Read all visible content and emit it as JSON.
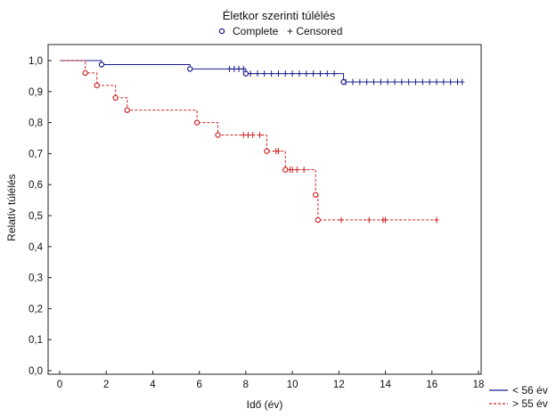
{
  "chart_data": {
    "type": "line",
    "subtype": "kaplan-meier-step",
    "title": "Életkor szerinti túlélés",
    "marker_legend": {
      "complete": "Complete",
      "censored": "+ Censored"
    },
    "xlabel": "Idő (év)",
    "ylabel": "Relatív túlélés",
    "xlim": [
      0,
      18
    ],
    "ylim": [
      0,
      1.0
    ],
    "x_ticks": [
      "0",
      "2",
      "4",
      "6",
      "8",
      "10",
      "12",
      "14",
      "16",
      "18"
    ],
    "y_ticks": [
      "0,0",
      "0,1",
      "0,2",
      "0,3",
      "0,4",
      "0,5",
      "0,6",
      "0,7",
      "0,8",
      "0,9",
      "1,0"
    ],
    "grid": false,
    "legend_position": "bottom-right",
    "series": [
      {
        "name": "< 56 év",
        "color": "#1a1a8c",
        "line_style": "solid",
        "start_x": 0.0,
        "start_y": 1.0,
        "end_x": 17.3,
        "events": [
          {
            "x": 1.8,
            "y": 0.987
          },
          {
            "x": 5.6,
            "y": 0.973
          },
          {
            "x": 8.0,
            "y": 0.958
          },
          {
            "x": 12.2,
            "y": 0.931
          }
        ],
        "censored": [
          7.3,
          7.5,
          7.7,
          7.9,
          8.2,
          8.5,
          8.8,
          9.1,
          9.4,
          9.7,
          10.0,
          10.3,
          10.6,
          10.9,
          11.2,
          11.5,
          11.8,
          12.3,
          12.6,
          12.9,
          13.2,
          13.5,
          13.8,
          14.1,
          14.4,
          14.7,
          15.0,
          15.3,
          15.6,
          15.9,
          16.2,
          16.5,
          16.8,
          17.1,
          17.3
        ]
      },
      {
        "name": "> 55 év",
        "color": "#cc2222",
        "line_style": "dashed",
        "start_x": 0.0,
        "start_y": 1.0,
        "end_x": 16.2,
        "events": [
          {
            "x": 1.1,
            "y": 0.96
          },
          {
            "x": 1.6,
            "y": 0.92
          },
          {
            "x": 2.4,
            "y": 0.88
          },
          {
            "x": 2.9,
            "y": 0.84
          },
          {
            "x": 5.9,
            "y": 0.8
          },
          {
            "x": 6.8,
            "y": 0.76
          },
          {
            "x": 8.9,
            "y": 0.708
          },
          {
            "x": 9.7,
            "y": 0.648
          },
          {
            "x": 11.0,
            "y": 0.567
          },
          {
            "x": 11.1,
            "y": 0.486
          }
        ],
        "censored": [
          7.9,
          8.1,
          8.3,
          8.6,
          9.3,
          9.4,
          9.9,
          10.0,
          10.2,
          10.5,
          12.1,
          13.3,
          13.9,
          14.0,
          16.2
        ]
      }
    ]
  }
}
